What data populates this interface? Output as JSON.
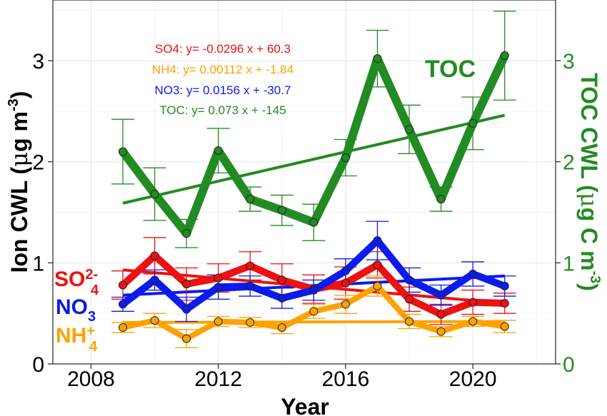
{
  "chart_data": {
    "type": "line",
    "xlabel": "Year",
    "ylabel_main": "Ion CWL (",
    "ylabel_mu": "μ",
    "ylabel_unit": "g m",
    "ylabel_exp": "-3",
    "ylabel_close": ")",
    "y2label_main": "TOC CWL (",
    "y2label_mu": "μ",
    "y2label_unit": "g C m",
    "y2label_exp": "-3",
    "y2label_close": ")",
    "xlim": [
      2006.8,
      2022.6
    ],
    "ylim": [
      0,
      3.6
    ],
    "y2lim": [
      0,
      3.6
    ],
    "x_ticks": [
      2008,
      2012,
      2016,
      2020
    ],
    "y_ticks": [
      0,
      1,
      2,
      3
    ],
    "y2_ticks": [
      0,
      1,
      2,
      3
    ],
    "grid": true,
    "x": [
      2009,
      2010,
      2011,
      2012,
      2013,
      2014,
      2015,
      2016,
      2017,
      2018,
      2019,
      2020,
      2021
    ],
    "series": [
      {
        "name": "SO4",
        "color": "#ee1111",
        "values": [
          0.78,
          1.07,
          0.79,
          0.85,
          0.97,
          0.83,
          0.74,
          0.8,
          0.98,
          0.64,
          0.49,
          0.61,
          0.6
        ],
        "err": [
          0.14,
          0.18,
          0.16,
          0.14,
          0.14,
          0.16,
          0.14,
          0.16,
          0.13,
          0.12,
          0.1,
          0.12,
          0.1
        ],
        "trend": [
          0.93,
          0.6
        ]
      },
      {
        "name": "NO3",
        "color": "#0b1bf0",
        "values": [
          0.59,
          0.83,
          0.54,
          0.76,
          0.77,
          0.65,
          0.73,
          0.92,
          1.22,
          0.83,
          0.68,
          0.89,
          0.77
        ],
        "err": [
          0.07,
          0.1,
          0.12,
          0.12,
          0.1,
          0.1,
          0.1,
          0.12,
          0.19,
          0.12,
          0.1,
          0.12,
          0.1
        ],
        "trend": [
          0.68,
          0.87
        ]
      },
      {
        "name": "NH4",
        "color": "#ffa200",
        "values": [
          0.36,
          0.43,
          0.25,
          0.42,
          0.41,
          0.36,
          0.52,
          0.59,
          0.77,
          0.42,
          0.32,
          0.42,
          0.37
        ],
        "err": [
          0.05,
          0.07,
          0.09,
          0.05,
          0.05,
          0.06,
          0.07,
          0.09,
          0.1,
          0.07,
          0.05,
          0.05,
          0.06
        ],
        "trend": [
          0.41,
          0.42
        ]
      },
      {
        "name": "TOC",
        "color": "#238b23",
        "values": [
          2.1,
          1.68,
          1.29,
          2.11,
          1.63,
          1.52,
          1.4,
          2.04,
          3.02,
          2.32,
          1.63,
          2.38,
          3.05
        ],
        "err": [
          0.32,
          0.26,
          0.14,
          0.22,
          0.12,
          0.15,
          0.18,
          0.18,
          0.28,
          0.24,
          0.12,
          0.26,
          0.44
        ],
        "trend": [
          1.59,
          2.46
        ]
      }
    ],
    "equations": [
      {
        "text": "SO4: y= -0.0296 x + 60.3",
        "color": "#ee1111"
      },
      {
        "text": "NH4: y= 0.00112 x + -1.84",
        "color": "#ffa200"
      },
      {
        "text": "NO3: y= 0.0156 x + -30.7",
        "color": "#0b1bf0"
      },
      {
        "text": "TOC: y= 0.073 x + -145",
        "color": "#238b23"
      }
    ],
    "annotations": {
      "toc": "TOC",
      "so4_base": "SO",
      "so4_sub": "4",
      "so4_sup": "2-",
      "no3_base": "NO",
      "no3_sub": "3",
      "nh4_base": "NH",
      "nh4_sub": "4",
      "nh4_sup": "+"
    }
  }
}
